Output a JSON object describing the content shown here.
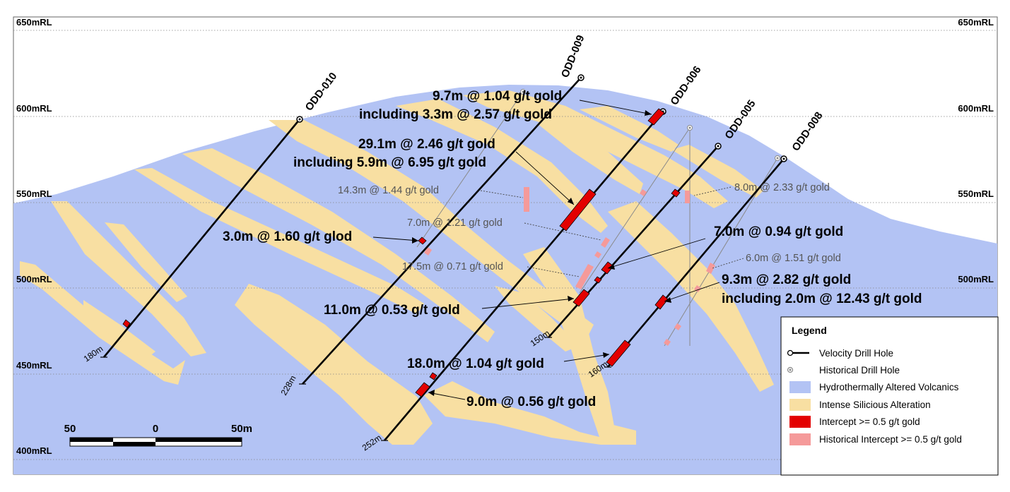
{
  "section": {
    "rl_labels": [
      "650mRL",
      "600mRL",
      "550mRL",
      "500mRL",
      "450mRL",
      "400mRL"
    ],
    "colors": {
      "volcanics": "#b3c3f4",
      "silicious": "#f8dfa2",
      "intercept": "#e30000",
      "historical_intercept": "#f59a9a",
      "drill_hole": "#000000",
      "historical_hole": "#8a8a8a"
    }
  },
  "drill_holes": [
    {
      "name": "ODD-010",
      "depth_label": "180m"
    },
    {
      "name": "ODD-009",
      "depth_label": "228m"
    },
    {
      "name": "ODD-006",
      "depth_label": "252m"
    },
    {
      "name": "ODD-005",
      "depth_label": "150m"
    },
    {
      "name": "ODD-008",
      "depth_label": "160m"
    }
  ],
  "annotations": {
    "a1": "9.7m @ 1.04 g/t gold",
    "a1b": "including 3.3m @ 2.57 g/t gold",
    "a2": "29.1m @ 2.46 g/t gold",
    "a2b": "including 5.9m @ 6.95 g/t gold",
    "a3": "3.0m @ 1.60 g/t glod",
    "a4": "7.0m @ 0.94 g/t gold",
    "a5": "9.3m @ 2.82 g/t gold",
    "a5b": "including 2.0m @ 12.43 g/t gold",
    "a6": "11.0m @ 0.53 g/t gold",
    "a7": "18.0m @ 1.04 g/t gold",
    "a8": "9.0m @ 0.56 g/t gold"
  },
  "historical_annotations": {
    "h1": "14.3m @ 1.44 g/t gold",
    "h2": "7.0m @ 1.21 g/t gold",
    "h3": "17.5m @ 0.71 g/t gold",
    "h4": "8.0m @ 2.33 g/t gold",
    "h5": "6.0m @ 1.51 g/t gold"
  },
  "scale_bar": {
    "labels": [
      "50",
      "0",
      "50m"
    ]
  },
  "legend": {
    "title": "Legend",
    "items": [
      {
        "label": "Velocity Drill Hole",
        "symbol": "drill-hole-icon"
      },
      {
        "label": "Historical Drill Hole",
        "symbol": "historical-hole-icon"
      },
      {
        "label": "Hydrothermally Altered Volcanics",
        "symbol": "volcanics-swatch"
      },
      {
        "label": "Intense Silicious Alteration",
        "symbol": "silicious-swatch"
      },
      {
        "label": "Intercept >= 0.5 g/t gold",
        "symbol": "intercept-swatch"
      },
      {
        "label": "Historical Intercept >= 0.5 g/t gold",
        "symbol": "historical-intercept-swatch"
      }
    ]
  }
}
